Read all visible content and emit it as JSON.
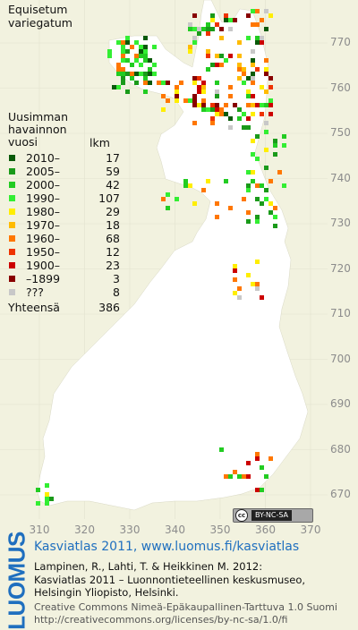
{
  "species": [
    "Equisetum",
    "variegatum"
  ],
  "legend": {
    "title_lines": [
      "Uusimman",
      "havainnon",
      "vuosi"
    ],
    "count_header": "lkm",
    "rows": [
      {
        "label": "2010–",
        "count": "17",
        "color": "#0a5a0a"
      },
      {
        "label": "2005–",
        "count": "59",
        "color": "#1a9a1a"
      },
      {
        "label": "2000–",
        "count": "42",
        "color": "#22cc22"
      },
      {
        "label": "1990–",
        "count": "107",
        "color": "#33ee33"
      },
      {
        "label": "1980–",
        "count": "29",
        "color": "#ffee00"
      },
      {
        "label": "1970–",
        "count": "18",
        "color": "#ffbb00"
      },
      {
        "label": "1960–",
        "count": "68",
        "color": "#ff7700"
      },
      {
        "label": "1950–",
        "count": "12",
        "color": "#ee3300"
      },
      {
        "label": "1900–",
        "count": "23",
        "color": "#cc0000"
      },
      {
        "label": "–1899",
        "count": "3",
        "color": "#880000"
      },
      {
        "label": "???",
        "count": "8",
        "color": "#c8c8c8"
      }
    ],
    "total_label": "Yhteensä",
    "total_count": "386"
  },
  "y_ticks": [
    "770",
    "760",
    "750",
    "740",
    "730",
    "720",
    "710",
    "700",
    "690",
    "680",
    "670"
  ],
  "x_ticks": [
    "310",
    "320",
    "330",
    "340",
    "350",
    "360",
    "370"
  ],
  "license_badge": {
    "cc": "cc",
    "text": "BY-NC-SA"
  },
  "logo": "LUOMUS",
  "footer": {
    "title": "Kasviatlas 2011, www.luomus.fi/kasviatlas",
    "citation_1": "Lampinen, R., Lahti, T. & Heikkinen M. 2012:",
    "citation_2": "Kasviatlas 2011 – Luonnontieteellinen keskusmuseo,",
    "citation_3": "Helsingin Yliopisto, Helsinki.",
    "license_1": "Creative Commons Nimeä-Epäkaupallinen-Tarttuva 1.0 Suomi",
    "license_2": "http://creativecommons.org/licenses/by-nc-sa/1.0/fi"
  },
  "colors": {
    "land": "#ffffff",
    "background": "#f2f2df",
    "grid": "#dcdcc8",
    "axis_text": "#8c8c8c",
    "brand_blue": "#1f6fbf"
  }
}
